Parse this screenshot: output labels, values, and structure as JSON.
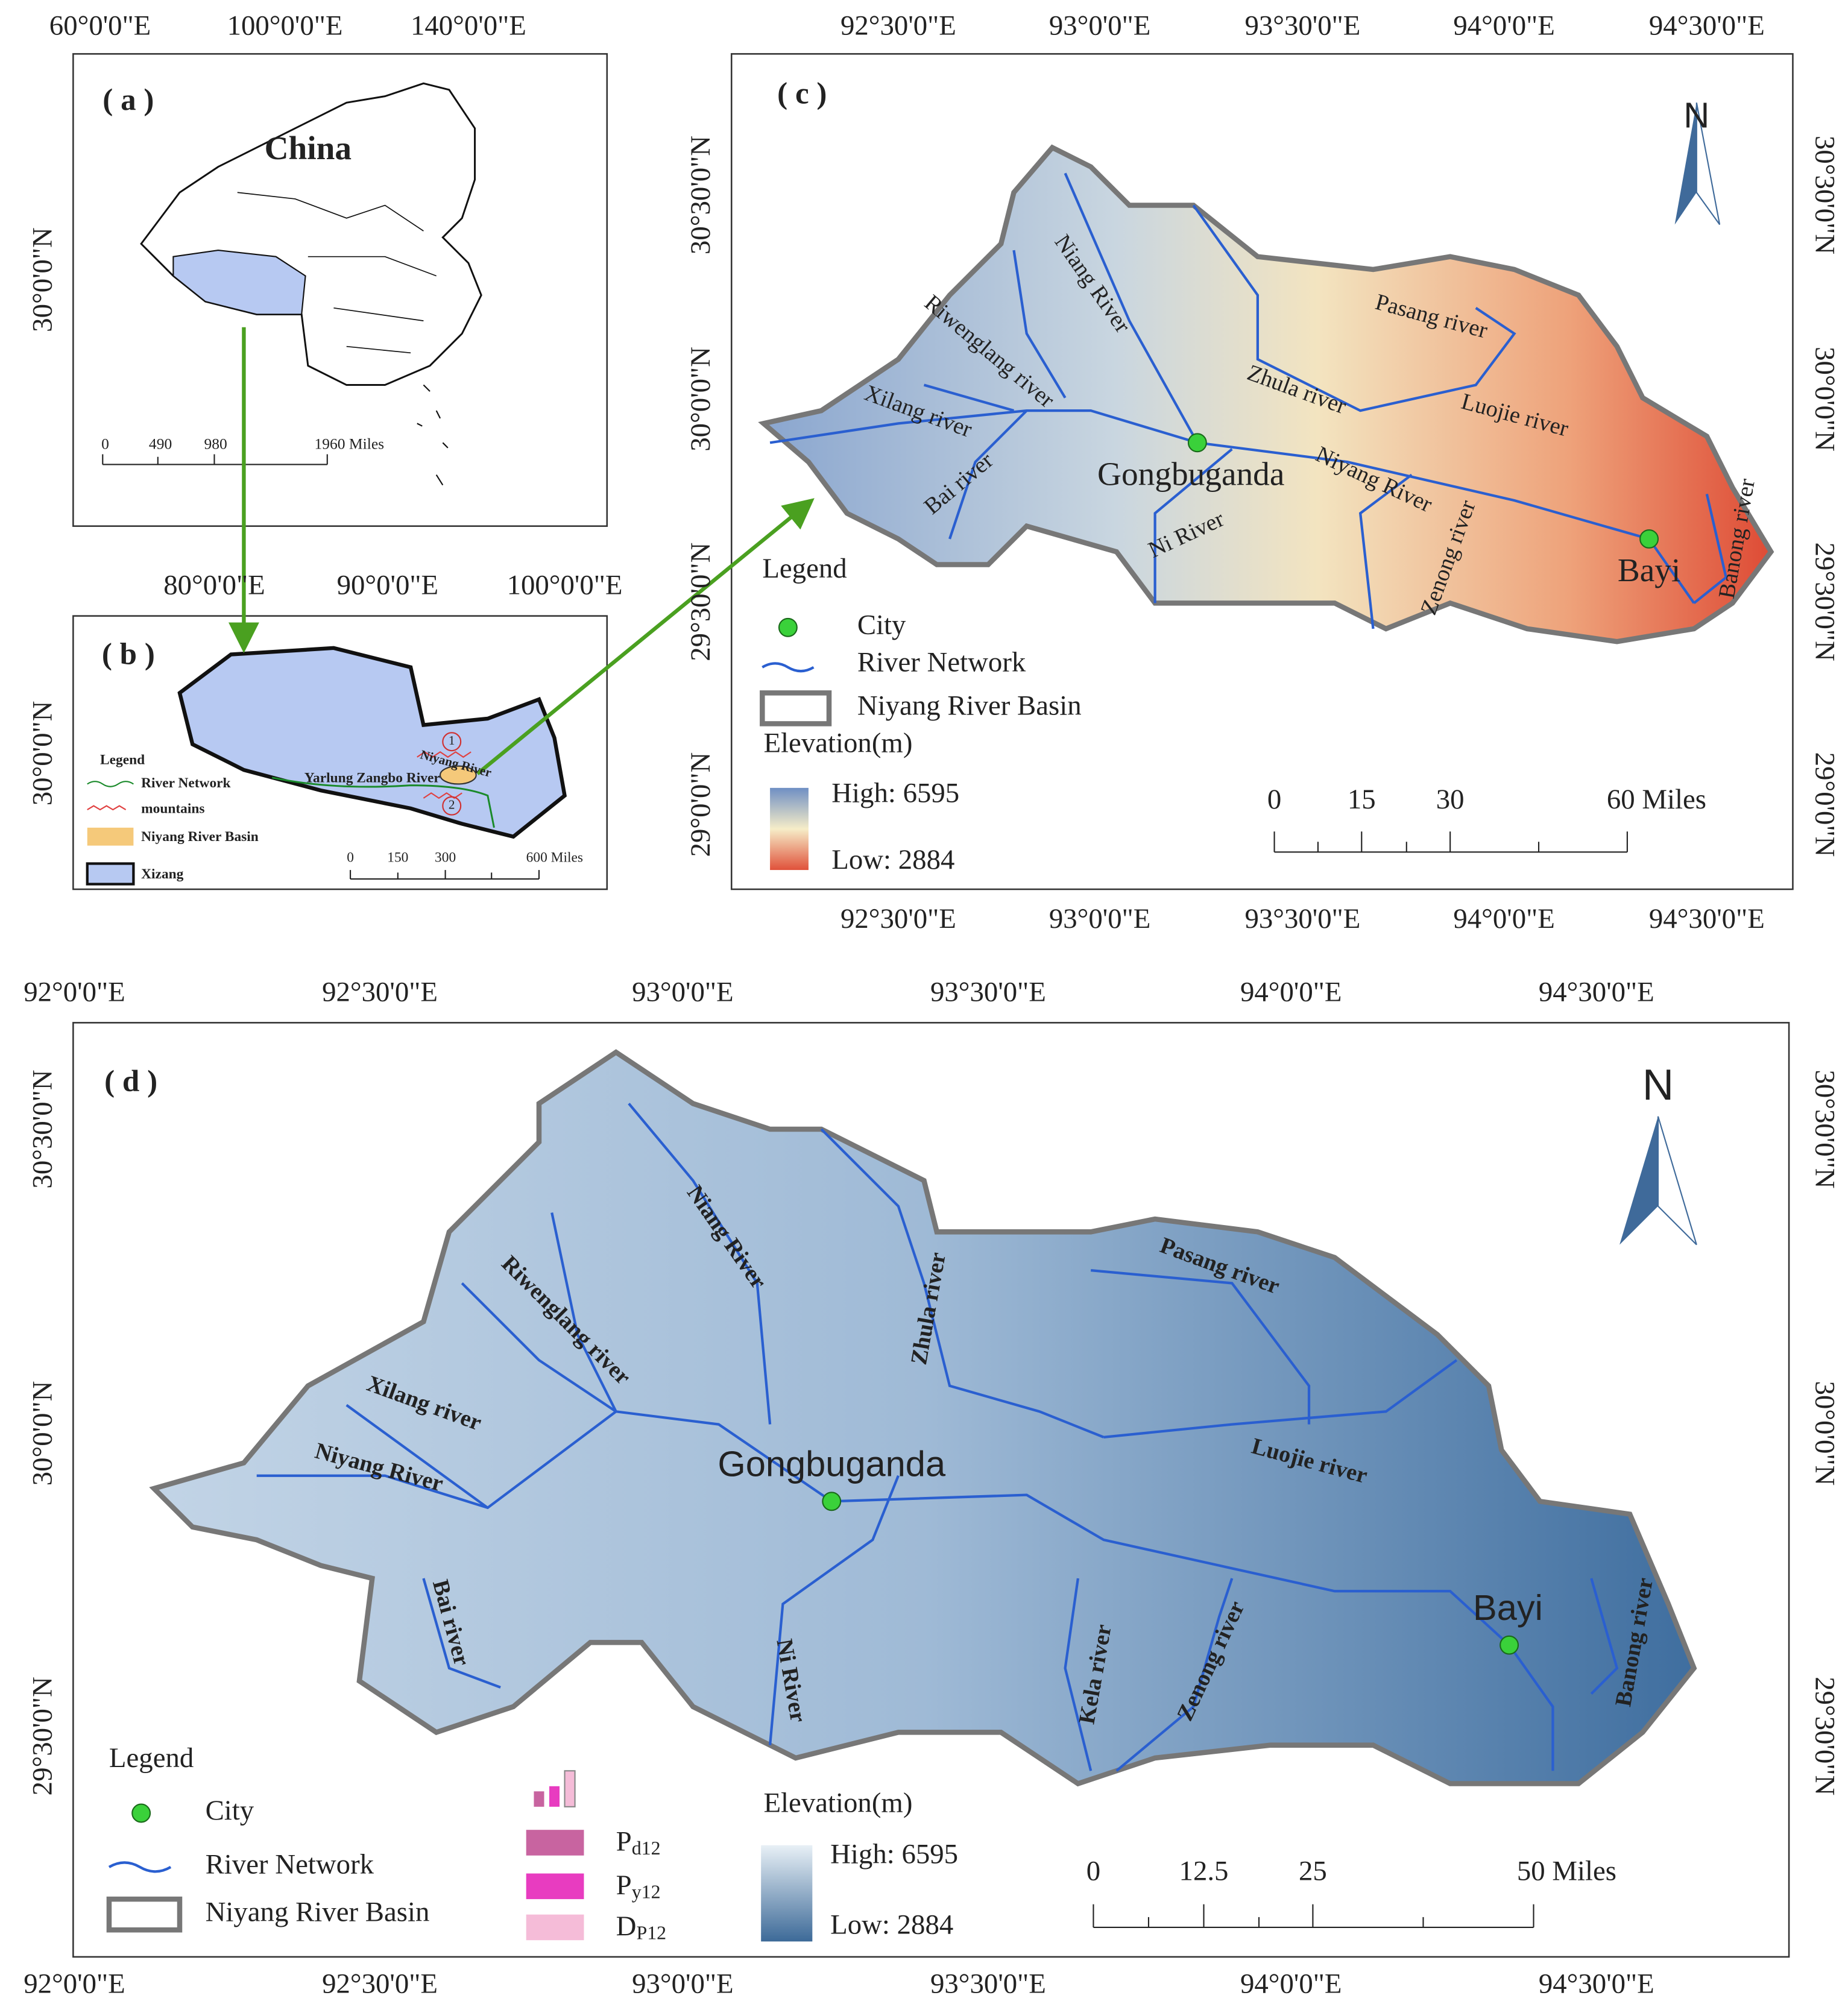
{
  "panel_a": {
    "label": "( a )",
    "top_ticks": [
      "60°0'0\"E",
      "100°0'0\"E",
      "140°0'0\"E"
    ],
    "left_ticks": [
      "30°0'0\"N"
    ],
    "country": "China",
    "scale": [
      "0",
      "490",
      "980",
      "1960 Miles"
    ]
  },
  "panel_b": {
    "label": "( b )",
    "top_ticks": [
      "80°0'0\"E",
      "90°0'0\"E",
      "100°0'0\"E"
    ],
    "left_ticks": [
      "30°0'0\"N"
    ],
    "legend_title": "Legend",
    "legend": [
      "River Network",
      "mountains",
      "Niyang River Basin",
      "Xizang"
    ],
    "labels": [
      "Yarlung Zangbo River",
      "Niyang River"
    ],
    "markers": [
      "1",
      "2"
    ],
    "scale": [
      "0",
      "150",
      "300",
      "600 Miles"
    ]
  },
  "panel_c": {
    "label": "( c )",
    "lon_ticks": [
      "92°30'0\"E",
      "93°0'0\"E",
      "93°30'0\"E",
      "94°0'0\"E",
      "94°30'0\"E"
    ],
    "lat_ticks": [
      "30°30'0\"N",
      "30°0'0\"N",
      "29°30'0\"N",
      "29°0'0\"N"
    ],
    "north": "N",
    "rivers": [
      "Niang River",
      "Riwenglang river",
      "Xilang river",
      "Bai river",
      "Ni River",
      "Pasang river",
      "Zhula river",
      "Luojie river",
      "Niyang River",
      "Zenong river",
      "Banong river"
    ],
    "cities": [
      "Gongbuganda",
      "Bayi"
    ],
    "legend_title": "Legend",
    "legend": [
      "City",
      "River Network",
      "Niyang River Basin"
    ],
    "elevation_title": "Elevation(m)",
    "high": "High: 6595",
    "low": "Low: 2884",
    "scale": [
      "0",
      "15",
      "30",
      "60 Miles"
    ]
  },
  "panel_d": {
    "label": "( d )",
    "lon_ticks": [
      "92°0'0\"E",
      "92°30'0\"E",
      "93°0'0\"E",
      "93°30'0\"E",
      "94°0'0\"E",
      "94°30'0\"E"
    ],
    "lat_ticks": [
      "30°30'0\"N",
      "30°0'0\"N",
      "29°30'0\"N"
    ],
    "north": "N",
    "rivers": [
      "Niang River",
      "Riwenglang river",
      "Xilang river",
      "Niyang River",
      "Bai river",
      "Zhula river",
      "Pasang river",
      "Luojie river",
      "Ni River",
      "Kela river",
      "Zenong river",
      "Banong river"
    ],
    "cities": [
      "Gongbuganda",
      "Bayi"
    ],
    "legend_title": "Legend",
    "legend": [
      "City",
      "River Network",
      "Niyang River Basin"
    ],
    "bar_legend": [
      {
        "symbol": "P",
        "subscript": "d12"
      },
      {
        "symbol": "P",
        "subscript": "y12"
      },
      {
        "symbol": "D",
        "subscript": "P12"
      }
    ],
    "elevation_title": "Elevation(m)",
    "high": "High: 6595",
    "low": "Low: 2884",
    "scale": [
      "0",
      "12.5",
      "25",
      "50 Miles"
    ]
  }
}
